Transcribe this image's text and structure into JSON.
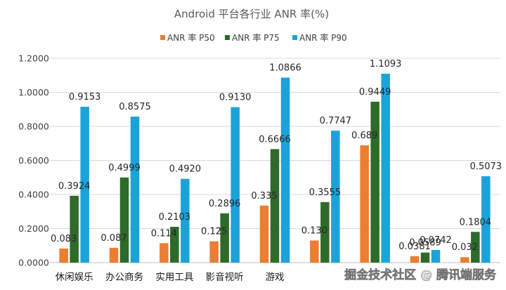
{
  "chart_data": {
    "type": "bar",
    "title": "Android 平台各行业 ANR 率(%)",
    "xlabel": "",
    "ylabel": "",
    "ylim": [
      0,
      1.2
    ],
    "yticks": [
      "0.0000",
      "0.2000",
      "0.4000",
      "0.6000",
      "0.8000",
      "1.0000",
      "1.2000"
    ],
    "grid": true,
    "legend_position": "top",
    "categories": [
      "休闲娱乐",
      "办公商务",
      "实用工具",
      "影音视听",
      "游戏",
      "",
      "",
      "",
      ""
    ],
    "series": [
      {
        "name": "ANR 率 P50",
        "color": "#ED7D31",
        "values": [
          0.083,
          0.087,
          0.114,
          0.125,
          0.335,
          0.13,
          0.689,
          0.0381,
          0.032
        ],
        "labels": [
          "0.083",
          "0.087",
          "0.114",
          "0.125",
          "0.335",
          "0.130",
          "0.689",
          "0.0381",
          "0.032"
        ]
      },
      {
        "name": "ANR 率 P75",
        "color": "#2E6B2A",
        "values": [
          0.3924,
          0.4999,
          0.2103,
          0.2896,
          0.6666,
          0.3555,
          0.9449,
          0.0589,
          0.1804
        ],
        "labels": [
          "0.3924",
          "0.4999",
          "0.2103",
          "0.2896",
          "0.6666",
          "0.3555",
          "0.9449",
          "0.0589",
          "0.1804"
        ]
      },
      {
        "name": "ANR 率 P90",
        "color": "#1BA3D9",
        "values": [
          0.9153,
          0.8575,
          0.492,
          0.913,
          1.0866,
          0.7747,
          1.1093,
          0.0742,
          0.5073
        ],
        "labels": [
          "0.9153",
          "0.8575",
          "0.4920",
          "0.9130",
          "1.0866",
          "0.7747",
          "1.1093",
          "0.0742",
          "0.5073"
        ]
      }
    ]
  },
  "watermark": {
    "text": "掘金技术社区 @ 腾讯端服务",
    "color": "#ffffff"
  }
}
